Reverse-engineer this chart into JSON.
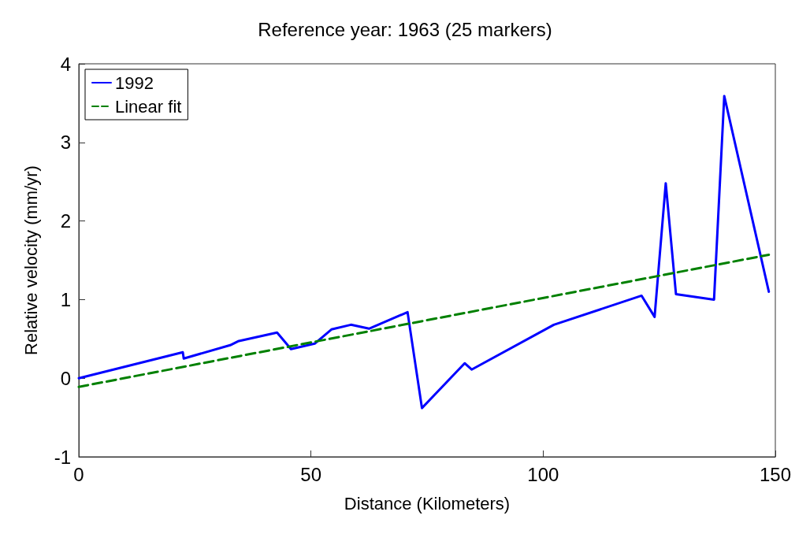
{
  "chart_data": {
    "type": "line",
    "title": "Reference year: 1963 (25 markers)",
    "xlabel": "Distance (Kilometers)",
    "ylabel": "Relative velocity (mm/yr)",
    "xlim": [
      0,
      150
    ],
    "xticks": [
      0,
      50,
      100,
      150
    ],
    "ylim": [
      -1,
      4
    ],
    "yticks": [
      -1,
      0,
      1,
      2,
      3,
      4
    ],
    "grid": false,
    "legend": "top left",
    "marker": "none",
    "series": [
      {
        "name": "1992",
        "color": "#0000ff",
        "line_style": "solid",
        "x": [
          0,
          22.4,
          22.6,
          32.6,
          34.3,
          42.7,
          45.7,
          50.8,
          54.4,
          58.6,
          62.5,
          70.8,
          73.9,
          83.1,
          84.6,
          102.3,
          121.2,
          124.0,
          126.4,
          128.6,
          136.8,
          139.0,
          148.6
        ],
        "values": [
          0.0,
          0.33,
          0.25,
          0.42,
          0.47,
          0.58,
          0.37,
          0.44,
          0.62,
          0.68,
          0.63,
          0.84,
          -0.38,
          0.19,
          0.11,
          0.68,
          1.05,
          0.78,
          2.48,
          1.07,
          1.0,
          3.59,
          1.1
        ]
      },
      {
        "name": "Linear fit",
        "color": "#008000",
        "line_style": "dashed",
        "x": [
          0,
          148.6
        ],
        "values": [
          -0.11,
          1.57
        ]
      }
    ]
  }
}
